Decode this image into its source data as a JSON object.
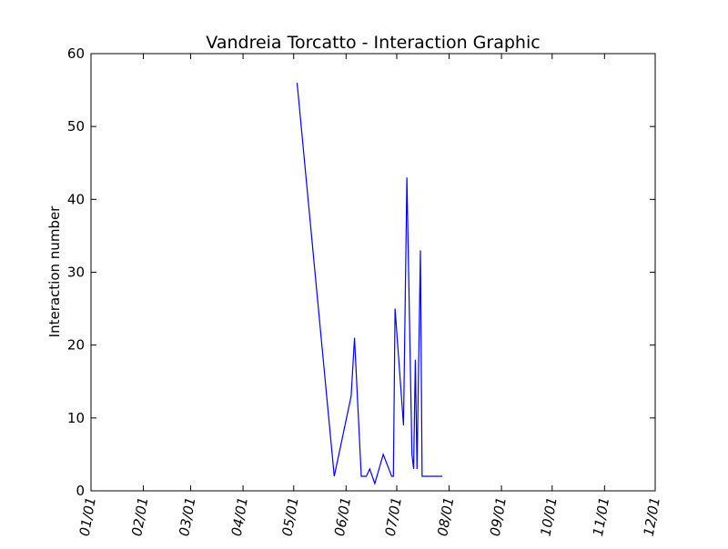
{
  "chart_data": {
    "type": "line",
    "title": "Vandreia Torcatto - Interaction Graphic",
    "xlabel": "",
    "ylabel": "Interaction number",
    "ylim": [
      0,
      60
    ],
    "yticks": [
      0,
      10,
      20,
      30,
      40,
      50,
      60
    ],
    "xlim": [
      "01/01",
      "12/01"
    ],
    "xtick_labels": [
      "01/01",
      "02/01",
      "03/01",
      "04/01",
      "05/01",
      "06/01",
      "07/01",
      "08/01",
      "09/01",
      "10/01",
      "11/01",
      "12/01"
    ],
    "grid": false,
    "legend": "none",
    "series": [
      {
        "color": "#0000ff",
        "x": [
          "05/03",
          "05/25",
          "06/04",
          "06/06",
          "06/10",
          "06/12",
          "06/13",
          "06/15",
          "06/18",
          "06/23",
          "06/28",
          "06/29",
          "06/30",
          "07/05",
          "07/07",
          "07/10",
          "07/11",
          "07/12",
          "07/13",
          "07/15",
          "07/16",
          "07/17",
          "07/18",
          "07/20",
          "07/25",
          "07/28"
        ],
        "y": [
          56,
          2,
          13,
          21,
          2,
          2,
          2,
          3,
          1,
          5,
          2,
          2,
          25,
          9,
          43,
          5,
          3,
          18,
          3,
          33,
          2,
          2,
          2,
          2,
          2,
          2
        ]
      }
    ]
  }
}
